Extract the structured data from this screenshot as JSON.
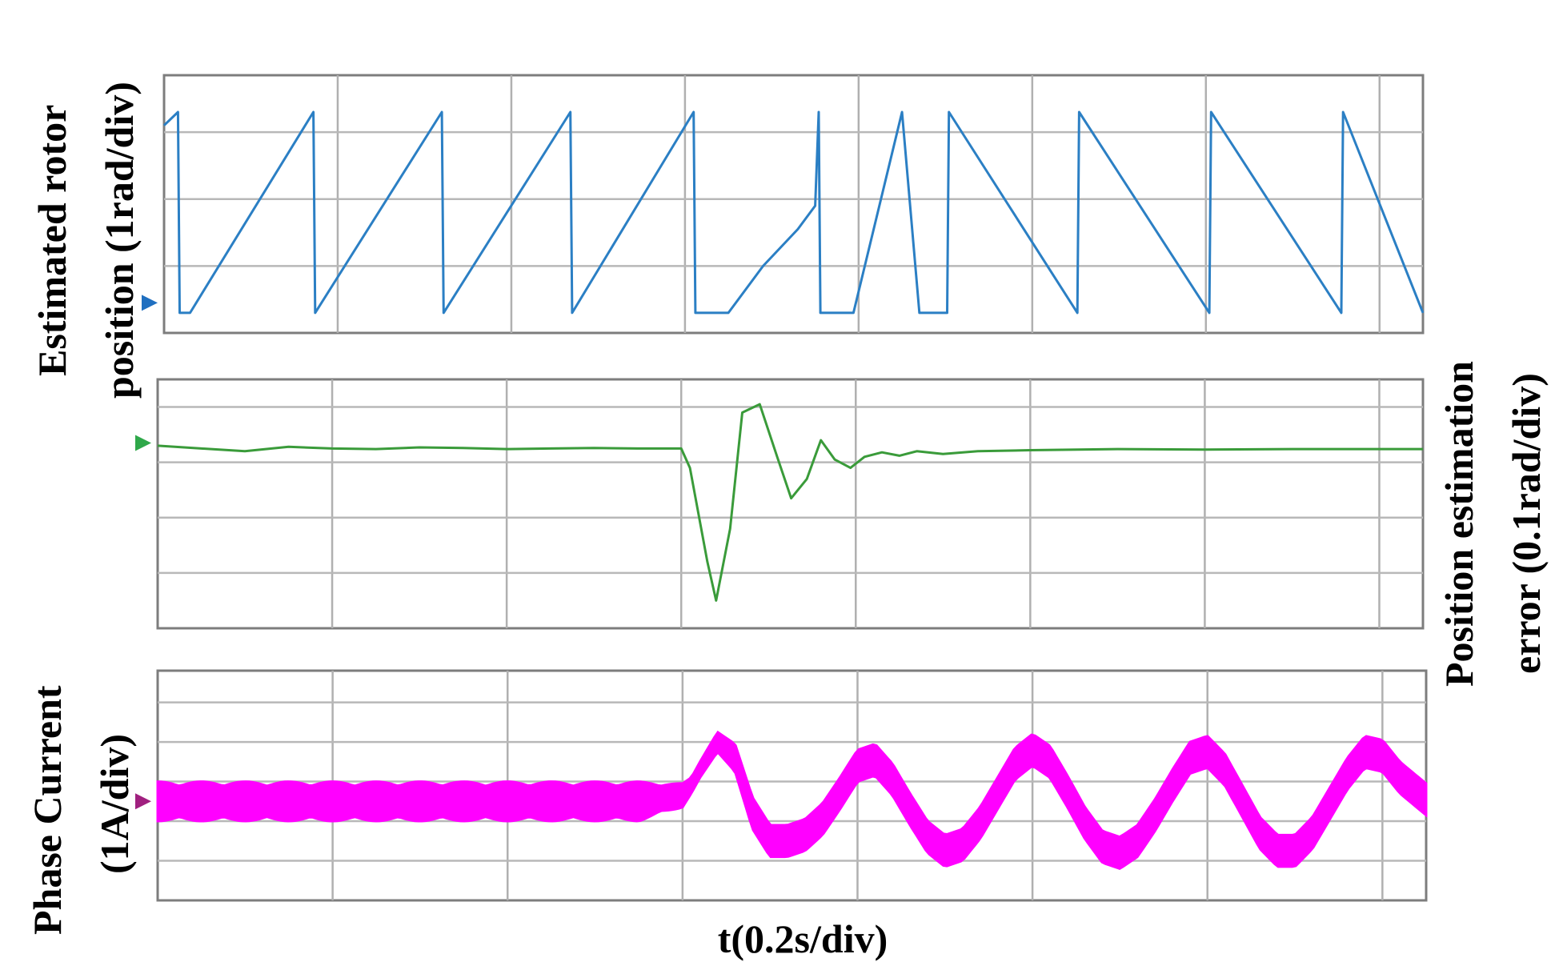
{
  "labels": {
    "top_line1": "Estimated rotor",
    "top_line2": "position (1rad/div)",
    "mid_line1": "Position estimation",
    "mid_line2": "error (0.1rad/div)",
    "bot_line1": "Phase Current",
    "bot_line2": "(1A/div)",
    "xlabel": "t(0.2s/div)"
  },
  "chart_data": [
    {
      "type": "line",
      "title": "",
      "xlabel": "t(0.2s/div)",
      "ylabel": "Estimated rotor position (1rad/div)",
      "x_unit": "div",
      "y_unit": "div",
      "xlim": [
        0,
        7.25
      ],
      "ylim": [
        0,
        3.85
      ],
      "grid": true,
      "legend": "none",
      "color": "#2b7fc4",
      "x": [
        0.0,
        0.08,
        0.09,
        0.15,
        0.86,
        0.87,
        1.6,
        1.61,
        2.34,
        2.35,
        3.05,
        3.06,
        3.25,
        3.45,
        3.65,
        3.75,
        3.77,
        3.78,
        3.97,
        4.25,
        4.35,
        4.51,
        4.52,
        5.26,
        5.27,
        6.02,
        6.03,
        6.78,
        6.79,
        7.25
      ],
      "values": [
        3.1,
        3.3,
        0.3,
        0.3,
        3.3,
        0.3,
        3.3,
        0.3,
        3.3,
        0.3,
        3.3,
        0.3,
        0.3,
        1.0,
        1.55,
        1.9,
        3.3,
        0.3,
        0.3,
        3.3,
        0.3,
        0.3,
        3.3,
        0.3,
        3.3,
        0.3,
        3.3,
        0.3,
        3.3,
        0.3
      ],
      "marker_level": 0.45
    },
    {
      "type": "line",
      "title": "",
      "xlabel": "t(0.2s/div)",
      "ylabel": "Position estimation error (0.1rad/div)",
      "x_unit": "div",
      "y_unit": "div",
      "xlim": [
        0,
        7.25
      ],
      "ylim": [
        0,
        4.5
      ],
      "grid": true,
      "legend": "none",
      "color": "#3a9b3a",
      "x": [
        0.0,
        0.25,
        0.5,
        0.75,
        1.0,
        1.25,
        1.5,
        1.75,
        2.0,
        2.25,
        2.5,
        2.75,
        3.0,
        3.05,
        3.15,
        3.2,
        3.28,
        3.35,
        3.45,
        3.55,
        3.63,
        3.72,
        3.8,
        3.88,
        3.97,
        4.05,
        4.15,
        4.25,
        4.35,
        4.5,
        4.7,
        5.0,
        5.5,
        6.0,
        6.5,
        7.25
      ],
      "values": [
        3.3,
        3.25,
        3.2,
        3.28,
        3.25,
        3.24,
        3.27,
        3.26,
        3.24,
        3.25,
        3.26,
        3.25,
        3.25,
        2.9,
        1.2,
        0.5,
        1.8,
        3.9,
        4.05,
        3.1,
        2.35,
        2.7,
        3.4,
        3.05,
        2.9,
        3.1,
        3.18,
        3.12,
        3.2,
        3.15,
        3.2,
        3.22,
        3.24,
        3.23,
        3.24,
        3.24
      ],
      "marker_level": 3.35
    },
    {
      "type": "line",
      "title": "",
      "xlabel": "t(0.2s/div)",
      "ylabel": "Phase Current (1A/div)",
      "x_unit": "div",
      "y_unit": "div",
      "xlim": [
        0,
        7.25
      ],
      "ylim": [
        0,
        5.8
      ],
      "grid": true,
      "legend": "none",
      "color": "#ff00ff",
      "envelope_x": [
        0.0,
        0.25,
        0.5,
        0.75,
        1.0,
        1.25,
        1.5,
        1.75,
        2.0,
        2.25,
        2.5,
        2.75,
        3.0,
        3.05,
        3.1,
        3.2,
        3.3,
        3.4,
        3.5,
        3.6,
        3.7,
        3.8,
        3.9,
        4.0,
        4.1,
        4.2,
        4.3,
        4.4,
        4.5,
        4.6,
        4.7,
        4.8,
        4.9,
        5.0,
        5.1,
        5.2,
        5.3,
        5.4,
        5.5,
        5.6,
        5.7,
        5.8,
        5.9,
        6.0,
        6.1,
        6.2,
        6.3,
        6.4,
        6.5,
        6.6,
        6.7,
        6.8,
        6.9,
        7.0,
        7.1,
        7.25
      ],
      "envelope_center": [
        2.5,
        2.5,
        2.5,
        2.5,
        2.5,
        2.5,
        2.5,
        2.5,
        2.5,
        2.5,
        2.5,
        2.5,
        2.65,
        2.9,
        3.3,
        4.0,
        3.6,
        2.2,
        1.5,
        1.5,
        1.65,
        2.05,
        2.7,
        3.4,
        3.55,
        3.05,
        2.3,
        1.6,
        1.25,
        1.4,
        1.95,
        2.7,
        3.45,
        3.8,
        3.5,
        2.75,
        1.95,
        1.35,
        1.2,
        1.5,
        2.15,
        2.9,
        3.6,
        3.75,
        3.3,
        2.5,
        1.7,
        1.25,
        1.25,
        1.7,
        2.45,
        3.2,
        3.75,
        3.65,
        3.1,
        2.55
      ],
      "envelope_halfwidth": [
        0.5,
        0.5,
        0.5,
        0.5,
        0.5,
        0.5,
        0.5,
        0.5,
        0.5,
        0.5,
        0.5,
        0.5,
        0.3,
        0.2,
        0.2,
        0.25,
        0.35,
        0.4,
        0.4,
        0.4,
        0.4,
        0.4,
        0.4,
        0.4,
        0.4,
        0.4,
        0.4,
        0.4,
        0.4,
        0.4,
        0.4,
        0.4,
        0.4,
        0.4,
        0.4,
        0.4,
        0.4,
        0.4,
        0.4,
        0.4,
        0.4,
        0.4,
        0.4,
        0.4,
        0.4,
        0.4,
        0.4,
        0.4,
        0.4,
        0.4,
        0.4,
        0.4,
        0.4,
        0.4,
        0.4,
        0.4
      ],
      "marker_level": 2.5
    }
  ],
  "colors": {
    "marker_top": "#1f6fc0",
    "marker_mid": "#2fa84a",
    "marker_bot": "#a0207f"
  }
}
